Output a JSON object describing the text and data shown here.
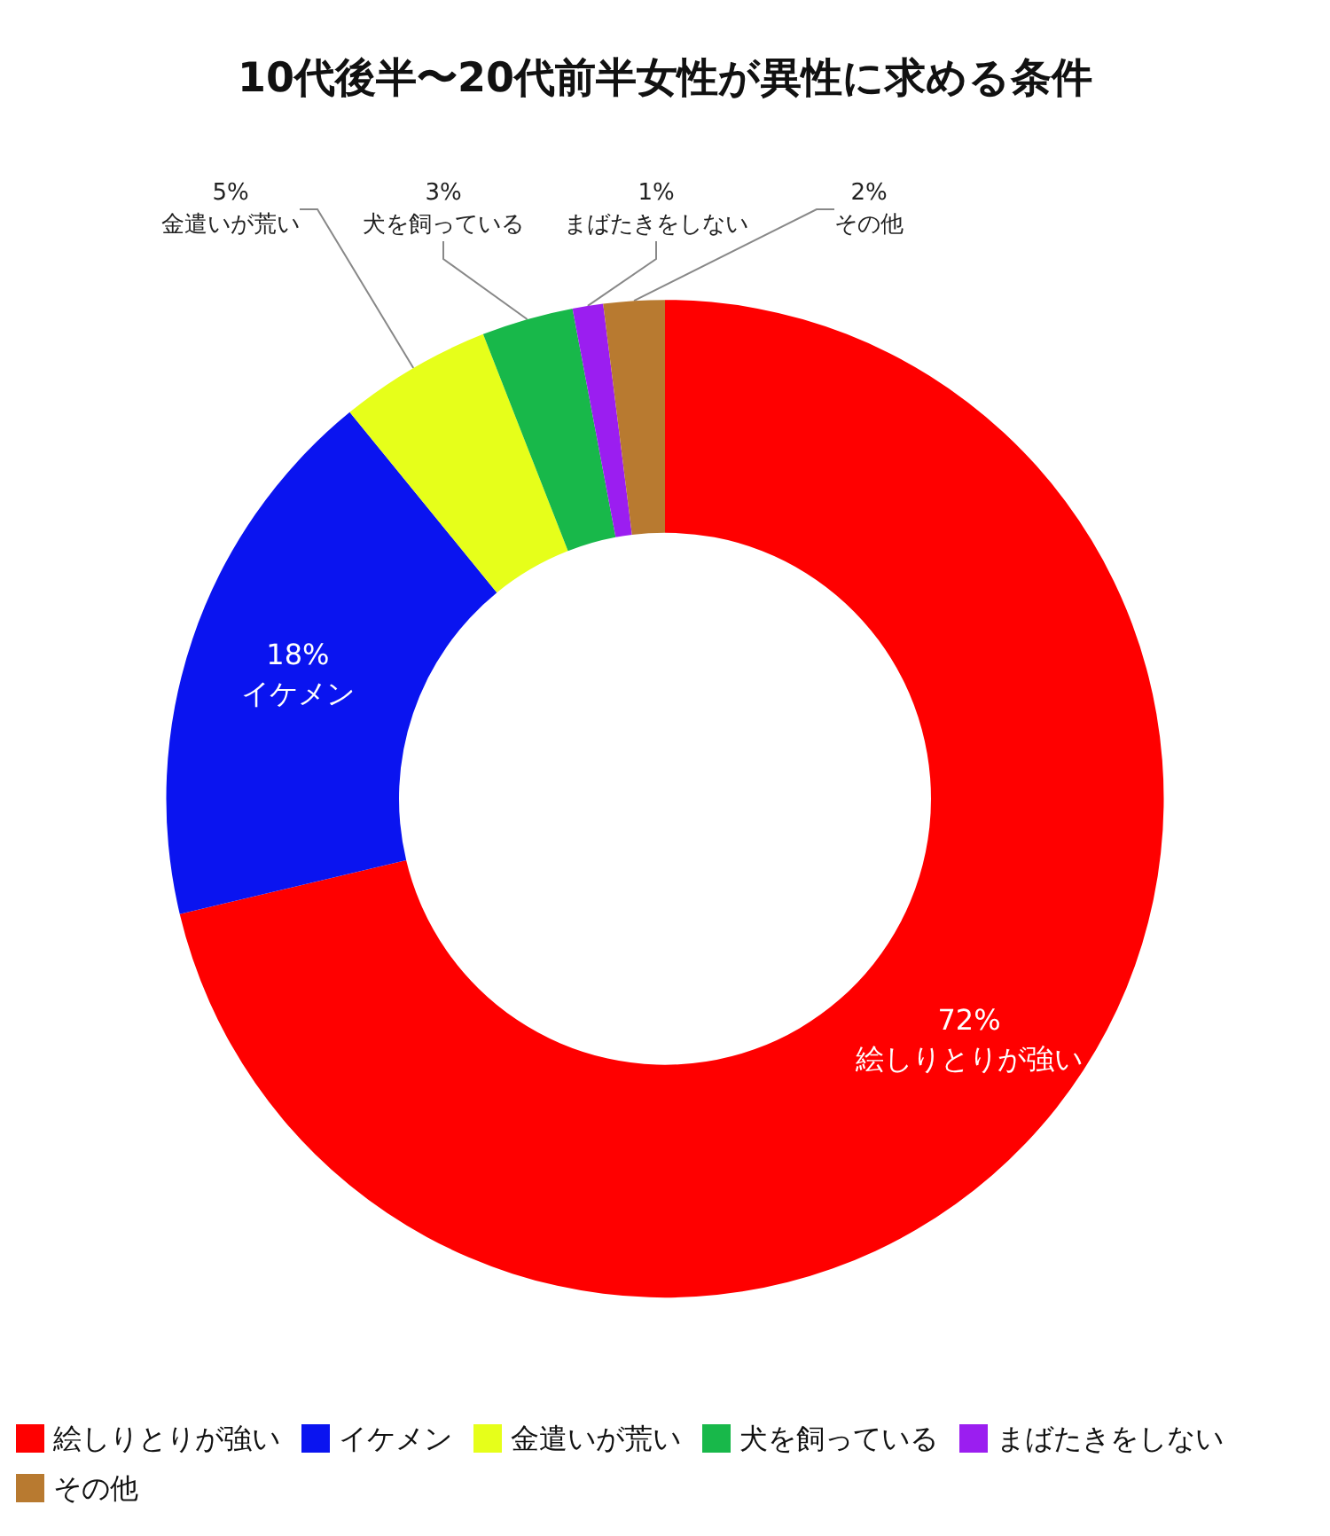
{
  "chart_data": {
    "type": "donut",
    "title": "10代後半〜20代前半女性が異性に求める条件",
    "categories": [
      "絵しりとりが強い",
      "イケメン",
      "金遣いが荒い",
      "犬を飼っている",
      "まばたきをしない",
      "その他"
    ],
    "values": [
      72,
      18,
      5,
      3,
      1,
      2
    ],
    "value_labels": [
      "72%",
      "18%",
      "5%",
      "3%",
      "1%",
      "2%"
    ],
    "colors": [
      "#ff0000",
      "#0a14f0",
      "#e6ff1a",
      "#18b84a",
      "#9b1ef0",
      "#b87a30"
    ],
    "legend": "bottom left"
  }
}
